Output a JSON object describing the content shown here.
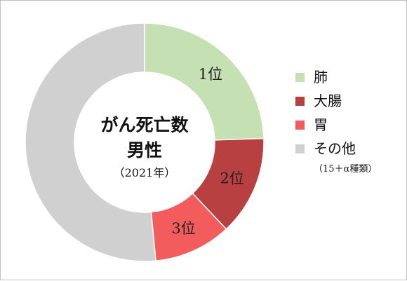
{
  "chart_data": {
    "type": "pie",
    "center": {
      "line1": "がん死亡数",
      "line2": "男性",
      "line3": "（2021年）"
    },
    "slices": [
      {
        "label": "1位",
        "category": "肺",
        "value": 24.5,
        "color": "#c5e0b3"
      },
      {
        "label": "2位",
        "category": "大腸",
        "value": 13.5,
        "color": "#b94040"
      },
      {
        "label": "3位",
        "category": "胃",
        "value": 10.5,
        "color": "#f25c5c"
      },
      {
        "label": "",
        "category": "その他",
        "value": 51.5,
        "color": "#d0d0d0"
      }
    ],
    "legend": [
      {
        "label": "肺",
        "color": "#c5e0b3"
      },
      {
        "label": "大腸",
        "color": "#b94040"
      },
      {
        "label": "胃",
        "color": "#f25c5c"
      },
      {
        "label": "その他",
        "color": "#d0d0d0",
        "note": "（15＋α種類）"
      }
    ],
    "legend_position": "right"
  }
}
